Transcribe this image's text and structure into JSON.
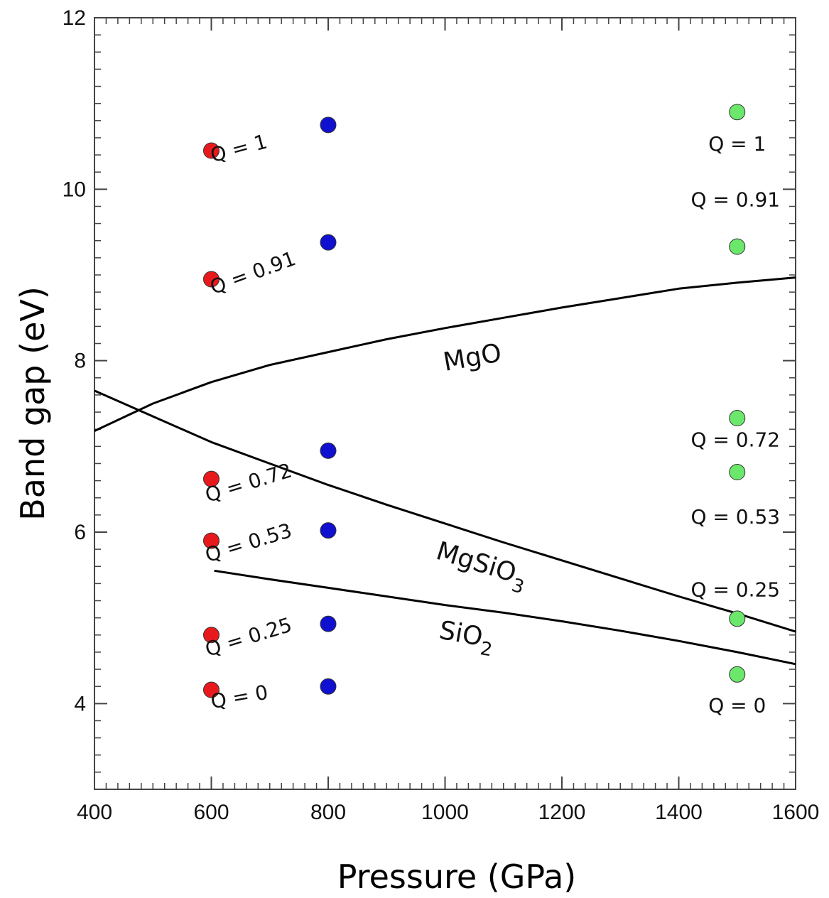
{
  "chart_data": {
    "type": "scatter",
    "xlabel": "Pressure (GPa)",
    "ylabel": "Band gap (eV)",
    "xlim": [
      400,
      1600
    ],
    "ylim": [
      3,
      12
    ],
    "x_ticks": [
      "400",
      "600",
      "800",
      "1000",
      "1200",
      "1400",
      "1600"
    ],
    "y_ticks": [
      "4",
      "6",
      "8",
      "10",
      "12"
    ],
    "grid": false,
    "colors": {
      "red": "#e8191c",
      "blue": "#1010d0",
      "green": "#6be86b",
      "line": "#000000"
    },
    "point_series": [
      {
        "color": "#e8191c",
        "points": [
          {
            "x": 600,
            "y": 10.45
          },
          {
            "x": 600,
            "y": 8.95
          },
          {
            "x": 600,
            "y": 6.62
          },
          {
            "x": 600,
            "y": 5.9
          },
          {
            "x": 600,
            "y": 4.8
          },
          {
            "x": 600,
            "y": 4.16
          }
        ]
      },
      {
        "color": "#1010d0",
        "points": [
          {
            "x": 800,
            "y": 10.75
          },
          {
            "x": 800,
            "y": 9.38
          },
          {
            "x": 800,
            "y": 6.95
          },
          {
            "x": 800,
            "y": 6.02
          },
          {
            "x": 800,
            "y": 4.93
          },
          {
            "x": 800,
            "y": 4.2
          }
        ]
      },
      {
        "color": "#6be86b",
        "points": [
          {
            "x": 1500,
            "y": 10.9
          },
          {
            "x": 1500,
            "y": 9.33
          },
          {
            "x": 1500,
            "y": 7.33
          },
          {
            "x": 1500,
            "y": 6.7
          },
          {
            "x": 1500,
            "y": 4.99
          },
          {
            "x": 1500,
            "y": 4.34
          }
        ]
      }
    ],
    "curves": [
      {
        "name": "MgO",
        "points": [
          [
            400,
            7.18
          ],
          [
            500,
            7.5
          ],
          [
            600,
            7.75
          ],
          [
            700,
            7.95
          ],
          [
            800,
            8.1
          ],
          [
            900,
            8.25
          ],
          [
            1000,
            8.38
          ],
          [
            1100,
            8.5
          ],
          [
            1200,
            8.62
          ],
          [
            1300,
            8.73
          ],
          [
            1400,
            8.84
          ],
          [
            1500,
            8.91
          ],
          [
            1600,
            8.97
          ]
        ]
      },
      {
        "name": "MgSiO3",
        "points": [
          [
            400,
            7.65
          ],
          [
            500,
            7.35
          ],
          [
            600,
            7.05
          ],
          [
            700,
            6.8
          ],
          [
            800,
            6.55
          ],
          [
            900,
            6.32
          ],
          [
            1000,
            6.1
          ],
          [
            1100,
            5.88
          ],
          [
            1200,
            5.67
          ],
          [
            1300,
            5.46
          ],
          [
            1400,
            5.25
          ],
          [
            1500,
            5.05
          ],
          [
            1600,
            4.84
          ]
        ]
      },
      {
        "name": "SiO2",
        "points": [
          [
            605,
            5.55
          ],
          [
            700,
            5.45
          ],
          [
            800,
            5.35
          ],
          [
            900,
            5.25
          ],
          [
            1000,
            5.15
          ],
          [
            1100,
            5.06
          ],
          [
            1200,
            4.96
          ],
          [
            1300,
            4.85
          ],
          [
            1400,
            4.73
          ],
          [
            1500,
            4.6
          ],
          [
            1600,
            4.46
          ]
        ]
      }
    ],
    "curve_labels": {
      "mgo": "MgO",
      "mgsio3_base": "MgSiO",
      "mgsio3_sub": "3",
      "sio2_base": "SiO",
      "sio2_sub": "2"
    },
    "annotations": [
      {
        "text": "Q = 1",
        "x": 650,
        "y": 10.4,
        "rotate": -15
      },
      {
        "text": "Q = 0.91",
        "x": 675,
        "y": 8.95,
        "rotate": -20
      },
      {
        "text": "Q = 0.72",
        "x": 667,
        "y": 6.5,
        "rotate": -17
      },
      {
        "text": "Q = 0.53",
        "x": 667,
        "y": 5.8,
        "rotate": -17
      },
      {
        "text": "Q = 0.25",
        "x": 667,
        "y": 4.7,
        "rotate": -17
      },
      {
        "text": "Q = 0",
        "x": 650,
        "y": 4.0,
        "rotate": -10
      },
      {
        "text": "Q = 1",
        "x": 1500,
        "y": 10.45,
        "rotate": 0
      },
      {
        "text": "Q = 0.91",
        "x": 1497,
        "y": 9.8,
        "rotate": 0
      },
      {
        "text": "Q = 0.72",
        "x": 1497,
        "y": 7.0,
        "rotate": 0
      },
      {
        "text": "Q = 0.53",
        "x": 1497,
        "y": 6.1,
        "rotate": 0
      },
      {
        "text": "Q = 0.25",
        "x": 1497,
        "y": 5.25,
        "rotate": 0
      },
      {
        "text": "Q = 0",
        "x": 1500,
        "y": 3.9,
        "rotate": 0
      }
    ]
  }
}
